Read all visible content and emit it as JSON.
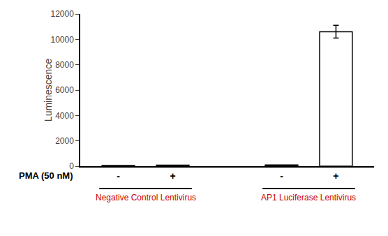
{
  "chart_data": {
    "type": "bar",
    "categories": [
      "-",
      "+",
      "-",
      "+"
    ],
    "values": [
      50,
      80,
      100,
      10600
    ],
    "errors": [
      0,
      0,
      0,
      500
    ],
    "colors": [
      "black",
      "black",
      "black",
      "white"
    ],
    "ylabel": "Luminescence",
    "xlabel": "PMA (50 nM)",
    "groups": [
      {
        "label": "Negative Control Lentivirus",
        "color": "#cc0000"
      },
      {
        "label": "AP1 Luciferase Lentivirus",
        "color": "#cc0000"
      }
    ],
    "ylim": [
      0,
      12000
    ],
    "yticks": [
      0,
      2000,
      4000,
      6000,
      8000,
      10000,
      12000
    ],
    "grid": false
  }
}
